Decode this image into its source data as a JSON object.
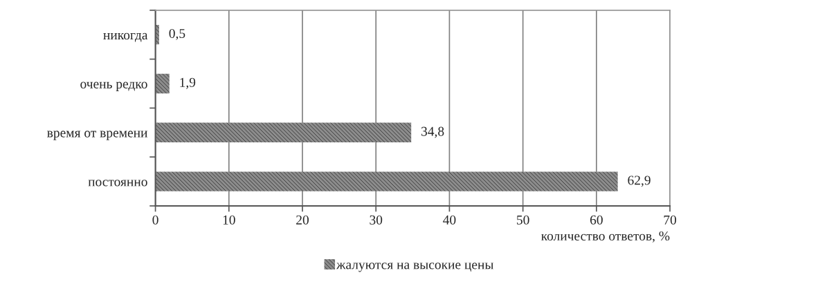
{
  "chart_data": {
    "type": "bar",
    "orientation": "horizontal",
    "categories": [
      "никогда",
      "очень редко",
      "время от времени",
      "постоянно"
    ],
    "series": [
      {
        "name": "жалуются на высокие цены",
        "color": "#8c8c8c",
        "values": [
          0.5,
          1.9,
          34.8,
          62.9
        ],
        "value_labels": [
          "0,5",
          "1,9",
          "34,8",
          "62,9"
        ]
      }
    ],
    "xlabel": "количество ответов, %",
    "xlim": [
      0,
      70
    ],
    "xticks": [
      0,
      10,
      20,
      30,
      40,
      50,
      60,
      70
    ],
    "grid": "x",
    "legend": "bottom"
  }
}
